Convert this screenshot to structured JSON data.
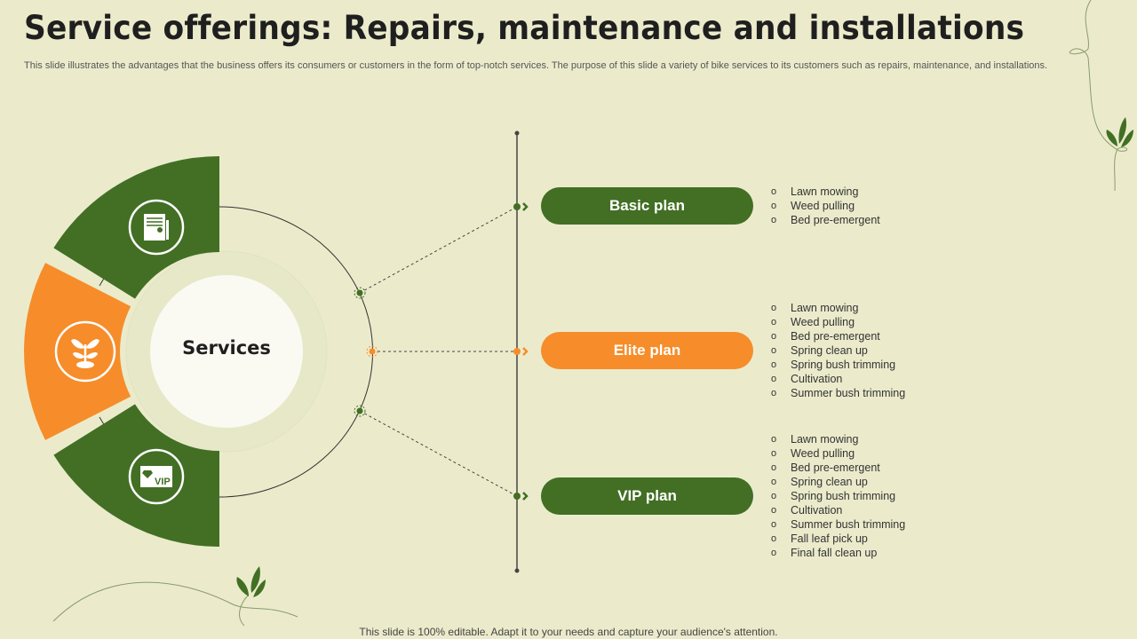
{
  "title": "Service offerings: Repairs, maintenance and installations",
  "subtitle": "This slide illustrates the advantages that the business offers its consumers or customers in the form of top-notch services. The purpose of this slide a variety  of bike services to its customers such as repairs, maintenance, and installations.",
  "center_label": "Services",
  "colors": {
    "green": "#426f24",
    "orange": "#f68d2a",
    "background": "#ebebcc"
  },
  "plans": [
    {
      "label": "Basic plan",
      "color": "#426f24",
      "icon": "report-document-icon",
      "items": [
        "Lawn mowing",
        "Weed pulling",
        "Bed pre-emergent"
      ]
    },
    {
      "label": "Elite plan",
      "color": "#f68d2a",
      "icon": "plant-sprout-icon",
      "items": [
        "Lawn mowing",
        "Weed pulling",
        "Bed pre-emergent",
        "Spring clean up",
        "Spring bush trimming",
        "Cultivation",
        "Summer bush trimming"
      ]
    },
    {
      "label": "VIP plan",
      "color": "#426f24",
      "icon": "vip-card-icon",
      "items": [
        "Lawn mowing",
        "Weed pulling",
        "Bed pre-emergent",
        "Spring clean up",
        "Spring bush trimming",
        "Cultivation",
        "Summer bush trimming",
        "Fall leaf pick up",
        "Final fall clean up"
      ]
    }
  ],
  "bullet": "o",
  "footer": "This slide is 100% editable. Adapt it to your needs and capture your audience's attention."
}
